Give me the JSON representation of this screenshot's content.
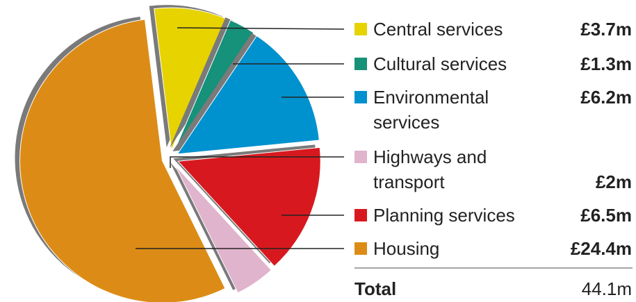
{
  "chart_data": {
    "type": "pie",
    "categories": [
      "Central services",
      "Cultural services",
      "Environmental services",
      "Highways and transport",
      "Planning services",
      "Housing"
    ],
    "values": [
      3.7,
      1.3,
      6.2,
      2,
      6.5,
      24.4
    ],
    "value_labels": [
      "£3.7m",
      "£1.3m",
      "£6.2m",
      "£2m",
      "£6.5m",
      "£24.4m"
    ],
    "colors": [
      "#e6d300",
      "#16917a",
      "#0091cf",
      "#e0b4cc",
      "#d7191f",
      "#dc8c16"
    ],
    "total_label": "Total",
    "total_value": "44.1m"
  }
}
